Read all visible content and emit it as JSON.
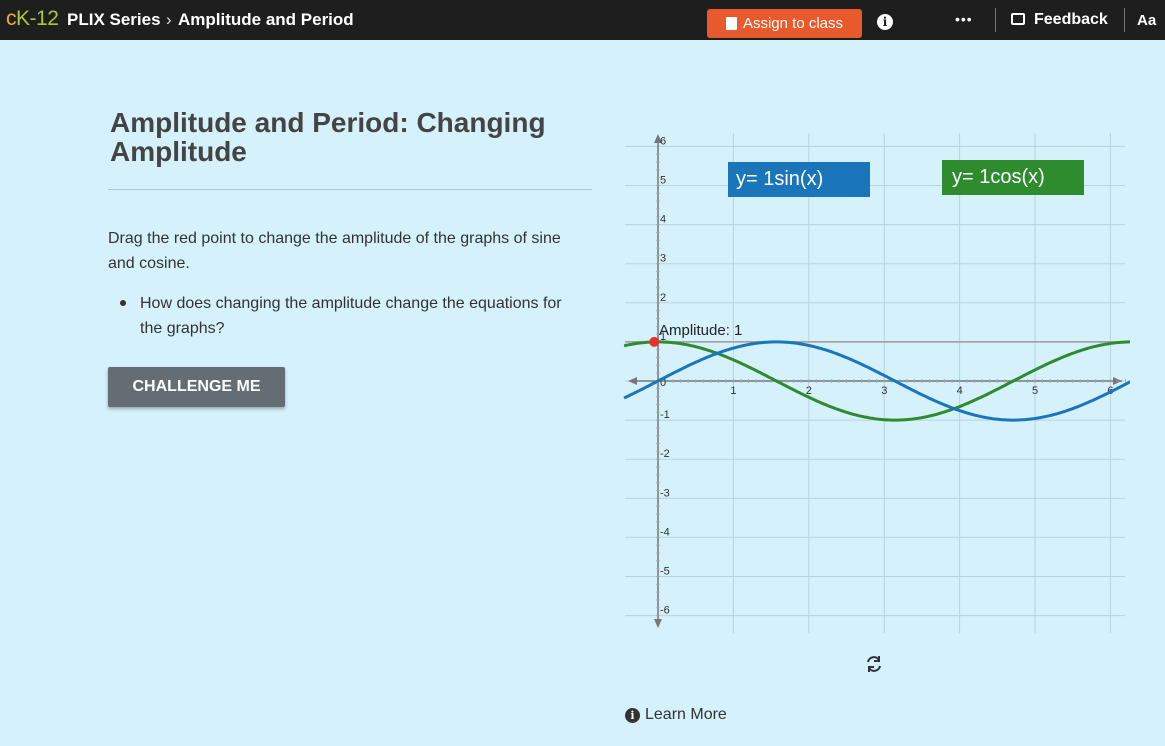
{
  "header": {
    "brand": {
      "c": "c",
      "k": "K",
      "dash": "-",
      "num": "12"
    },
    "series": "PLIX Series",
    "separator": "›",
    "crumb": "Amplitude and Period",
    "assign_label": "Assign to class",
    "info_icon": "info-icon",
    "more_label": "•••",
    "feedback_label": "Feedback",
    "font_size_label": "Aa"
  },
  "lesson": {
    "title": "Amplitude and Period: Changing Amplitude",
    "description": "Drag the red point to change the amplitude of the graphs of sine and cosine.",
    "question": "How does changing the amplitude change the equations for the graphs?",
    "challenge_label": "CHALLENGE ME"
  },
  "graph": {
    "sin_equation": "y= 1sin(x)",
    "cos_equation": "y= 1cos(x)",
    "amplitude_label": "Amplitude: 1",
    "amplitude": 1,
    "x_ticks": [
      "1",
      "2",
      "3",
      "4",
      "5",
      "6"
    ],
    "y_ticks": [
      "6",
      "5",
      "4",
      "3",
      "2",
      "1",
      "0",
      "-1",
      "-2",
      "-3",
      "-4",
      "-5",
      "-6"
    ],
    "colors": {
      "sin": "#1b75bb",
      "cos": "#2e8b2e",
      "point": "#e8312a"
    }
  },
  "footer": {
    "learn_more": "Learn More",
    "reset_icon": "refresh-icon"
  }
}
